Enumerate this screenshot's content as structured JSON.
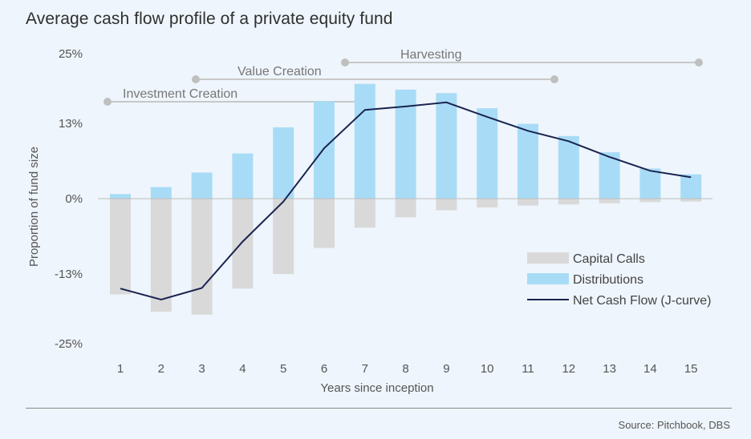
{
  "chart_data": {
    "type": "bar",
    "title": "Average cash flow profile of a private equity fund",
    "xlabel": "Years since inception",
    "ylabel": "Proportion of fund size",
    "categories": [
      "1",
      "2",
      "3",
      "4",
      "5",
      "6",
      "7",
      "8",
      "9",
      "10",
      "11",
      "12",
      "13",
      "14",
      "15"
    ],
    "ylim": [
      -25,
      25
    ],
    "yticks": [
      25,
      13,
      0,
      -13,
      -25
    ],
    "ytick_labels": [
      "25%",
      "13%",
      "0%",
      "-13%",
      "-25%"
    ],
    "grid": false,
    "legend_position": "lower-right",
    "series": [
      {
        "name": "Capital Calls",
        "type": "bar",
        "color": "#d9d9d9",
        "values": [
          -16.5,
          -19.5,
          -20,
          -15.5,
          -13,
          -8.5,
          -5,
          -3.2,
          -2,
          -1.5,
          -1.2,
          -1,
          -0.8,
          -0.6,
          -0.5
        ]
      },
      {
        "name": "Distributions",
        "type": "bar",
        "color": "#a8dcf6",
        "values": [
          0.8,
          2,
          4.5,
          7.8,
          12.3,
          16.8,
          19.8,
          18.8,
          18.2,
          15.6,
          12.9,
          10.8,
          8,
          5.2,
          4.2
        ]
      },
      {
        "name": "Net Cash Flow (J-curve)",
        "type": "line",
        "color": "#1a2350",
        "values": [
          -15.5,
          -17.4,
          -15.4,
          -7.4,
          -0.5,
          8.7,
          15.3,
          15.9,
          16.6,
          14.1,
          11.7,
          9.9,
          7.2,
          4.8,
          3.7
        ]
      }
    ],
    "phases": [
      {
        "label": "Investment Creation",
        "start": "1",
        "end": "7"
      },
      {
        "label": "Value Creation",
        "start": "3",
        "end": "12"
      },
      {
        "label": "Harvesting",
        "start": "7",
        "end": "15"
      }
    ]
  },
  "source": "Source: Pitchbook, DBS",
  "colors": {
    "background": "#eef5fc",
    "phase_line": "#c8c8c8",
    "phase_dot": "#bfbfbf"
  }
}
